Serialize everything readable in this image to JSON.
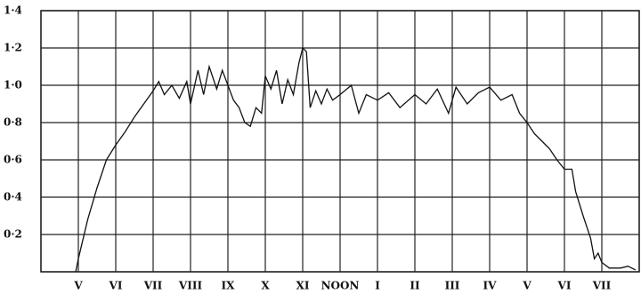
{
  "chart_data": {
    "type": "line",
    "x": [
      4.93,
      5.0,
      5.25,
      5.5,
      5.75,
      6.0,
      6.25,
      6.5,
      6.75,
      7.0,
      7.15,
      7.3,
      7.5,
      7.7,
      7.9,
      8.0,
      8.2,
      8.35,
      8.5,
      8.7,
      8.85,
      9.0,
      9.15,
      9.3,
      9.45,
      9.6,
      9.75,
      9.9,
      10.0,
      10.15,
      10.3,
      10.45,
      10.6,
      10.75,
      10.9,
      11.0,
      11.1,
      11.2,
      11.35,
      11.5,
      11.65,
      11.8,
      12.0,
      12.3,
      12.5,
      12.7,
      13.0,
      13.3,
      13.6,
      14.0,
      14.3,
      14.6,
      14.9,
      15.1,
      15.4,
      15.7,
      16.0,
      16.3,
      16.6,
      16.8,
      17.0,
      17.2,
      17.4,
      17.6,
      17.8,
      18.0,
      18.2,
      18.3,
      18.5,
      18.7,
      18.8,
      18.9,
      19.0,
      19.2,
      19.5,
      19.7,
      19.9
    ],
    "series": [
      {
        "color": "#111111",
        "values": [
          0,
          0.07,
          0.28,
          0.45,
          0.6,
          0.68,
          0.75,
          0.83,
          0.9,
          0.97,
          1.02,
          0.95,
          1.0,
          0.93,
          1.02,
          0.9,
          1.08,
          0.95,
          1.1,
          0.98,
          1.08,
          1.0,
          0.92,
          0.88,
          0.8,
          0.78,
          0.88,
          0.85,
          1.05,
          0.98,
          1.08,
          0.9,
          1.03,
          0.95,
          1.12,
          1.2,
          1.18,
          0.88,
          0.97,
          0.9,
          0.98,
          0.92,
          0.95,
          1.0,
          0.85,
          0.95,
          0.92,
          0.96,
          0.88,
          0.95,
          0.9,
          0.98,
          0.85,
          0.99,
          0.9,
          0.96,
          0.99,
          0.92,
          0.95,
          0.85,
          0.8,
          0.74,
          0.7,
          0.66,
          0.6,
          0.55,
          0.55,
          0.43,
          0.3,
          0.18,
          0.07,
          0.1,
          0.05,
          0.02,
          0.02,
          0.03,
          0.01
        ]
      }
    ],
    "xlim": [
      4,
      20
    ],
    "xticks": [
      {
        "value": 5,
        "label": "V"
      },
      {
        "value": 6,
        "label": "VI"
      },
      {
        "value": 7,
        "label": "VII"
      },
      {
        "value": 8,
        "label": "VIII"
      },
      {
        "value": 9,
        "label": "IX"
      },
      {
        "value": 10,
        "label": "X"
      },
      {
        "value": 11,
        "label": "XI"
      },
      {
        "value": 12,
        "label": "NOON"
      },
      {
        "value": 13,
        "label": "I"
      },
      {
        "value": 14,
        "label": "II"
      },
      {
        "value": 15,
        "label": "III"
      },
      {
        "value": 16,
        "label": "IV"
      },
      {
        "value": 17,
        "label": "V"
      },
      {
        "value": 18,
        "label": "VI"
      },
      {
        "value": 19,
        "label": "VII"
      }
    ],
    "ylim": [
      0,
      1.4
    ],
    "yticks": [
      {
        "value": 0.2,
        "label": "0·2"
      },
      {
        "value": 0.4,
        "label": "0·4"
      },
      {
        "value": 0.6,
        "label": "0·6"
      },
      {
        "value": 0.8,
        "label": "0·8"
      },
      {
        "value": 1.0,
        "label": "1·0"
      },
      {
        "value": 1.2,
        "label": "1·2"
      },
      {
        "value": 1.4,
        "label": "1·4"
      }
    ],
    "grid": true
  }
}
